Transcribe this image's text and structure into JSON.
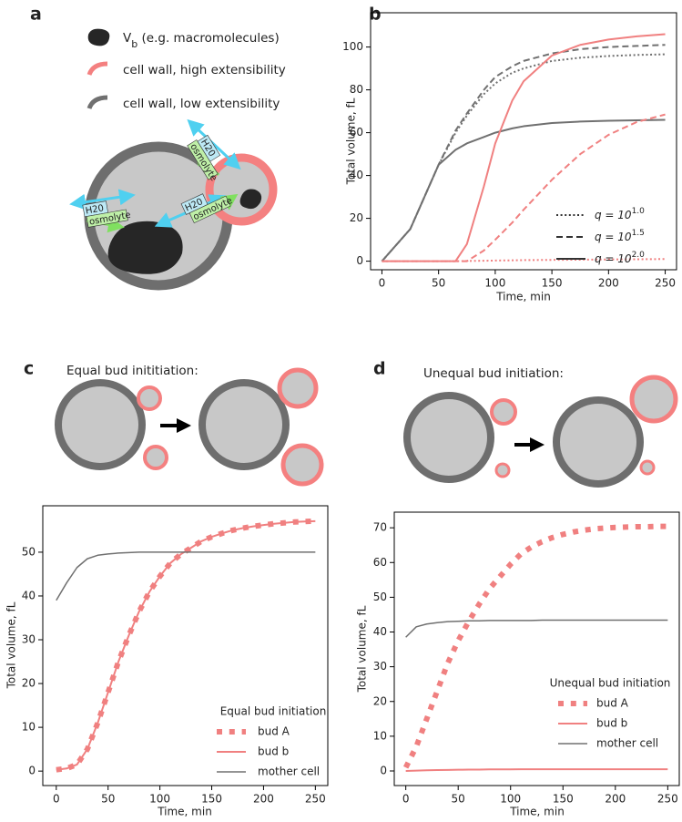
{
  "panels": {
    "a": {
      "letter": "a",
      "vb_symbol": "V",
      "vb_subscript": "b",
      "vb_text": "(e.g. macromolecules)",
      "high": "cell wall, high extensibility",
      "low": "cell wall, low extensibility",
      "water_labels": [
        "H20",
        "H20",
        "H20"
      ],
      "osmolyte_labels": [
        "osmolyte",
        "osmolyte",
        "osmolyte"
      ]
    },
    "b": {
      "letter": "b"
    },
    "c": {
      "letter": "c",
      "caption": "Equal bud inititiation:"
    },
    "d": {
      "letter": "d",
      "caption": "Unequal bud initiation:"
    }
  },
  "chart_data": [
    {
      "type": "line",
      "xlabel": "Time, min",
      "ylabel": "Total volume, fL",
      "x": [
        0,
        25,
        50,
        65,
        75,
        90,
        100,
        115,
        125,
        150,
        175,
        200,
        225,
        250
      ],
      "xlim": [
        -10,
        260
      ],
      "xticks": [
        0,
        50,
        100,
        150,
        200,
        250
      ],
      "ylim": [
        -4,
        116
      ],
      "yticks": [
        0,
        20,
        40,
        60,
        80,
        100
      ],
      "legend_position": "lower right",
      "legend": [
        {
          "base": "q = 10",
          "exponent": "1.0",
          "linestyle": "dotted"
        },
        {
          "base": "q = 10",
          "exponent": "1.5",
          "linestyle": "dashed"
        },
        {
          "base": "q = 10",
          "exponent": "2.0",
          "linestyle": "solid"
        }
      ],
      "series": [
        {
          "color": "#707070",
          "linestyle": "dotted",
          "linewidth": 2,
          "values": [
            0,
            15,
            45,
            60,
            68,
            78,
            83,
            88,
            90,
            93.5,
            95,
            95.8,
            96.3,
            96.6
          ]
        },
        {
          "color": "#707070",
          "linestyle": "dashed",
          "linewidth": 2,
          "values": [
            0,
            15,
            45,
            61,
            69,
            80,
            86,
            91,
            93.5,
            97,
            99,
            100,
            100.5,
            101
          ]
        },
        {
          "color": "#707070",
          "linestyle": "solid",
          "linewidth": 2,
          "values": [
            0,
            15,
            45,
            52,
            55,
            58,
            60,
            62,
            63,
            64.5,
            65.2,
            65.6,
            65.8,
            66
          ]
        },
        {
          "color": "#f08080",
          "linestyle": "dotted",
          "linewidth": 2,
          "values": [
            0,
            0,
            0,
            0,
            0.1,
            0.2,
            0.3,
            0.4,
            0.5,
            0.6,
            0.7,
            0.8,
            0.9,
            1
          ]
        },
        {
          "color": "#f08080",
          "linestyle": "dashed",
          "linewidth": 2,
          "values": [
            0,
            0,
            0,
            0,
            0,
            5,
            10,
            18,
            24,
            38,
            50,
            59,
            65,
            68.5
          ]
        },
        {
          "color": "#f08080",
          "linestyle": "solid",
          "linewidth": 2,
          "values": [
            0,
            0,
            0,
            0,
            8,
            35,
            55,
            75,
            84,
            96,
            101,
            103.5,
            105,
            106
          ]
        }
      ]
    },
    {
      "type": "line",
      "xlabel": "Time, min",
      "ylabel": "Total volume, fL",
      "x": [
        0,
        10,
        20,
        30,
        40,
        50,
        60,
        70,
        80,
        90,
        100,
        110,
        120,
        130,
        140,
        150,
        160,
        170,
        180,
        190,
        200,
        210,
        220,
        230,
        240,
        250
      ],
      "xlim": [
        -13,
        262
      ],
      "xticks": [
        0,
        50,
        100,
        150,
        200,
        250
      ],
      "ylim": [
        -3.3,
        60.6
      ],
      "yticks": [
        0,
        10,
        20,
        30,
        40,
        50
      ],
      "legend_position": "lower right",
      "legend_title": "Equal bud initiation",
      "series": [
        {
          "name": "bud A",
          "color": "#f08080",
          "linestyle": "dotted",
          "linewidth": 6,
          "values": [
            0.3,
            0.6,
            1.5,
            5,
            11,
            18,
            25,
            31,
            36.5,
            41,
            44.5,
            47.5,
            49.5,
            51,
            52.5,
            53.5,
            54.3,
            55,
            55.5,
            55.9,
            56.2,
            56.5,
            56.7,
            56.9,
            57,
            57.1
          ]
        },
        {
          "name": "bud b",
          "color": "#f08080",
          "linestyle": "solid",
          "linewidth": 2,
          "values": [
            0.3,
            0.6,
            1.5,
            5,
            11,
            18,
            25,
            31,
            36.5,
            41,
            44.5,
            47.5,
            49.5,
            51,
            52.5,
            53.5,
            54.3,
            55,
            55.5,
            55.9,
            56.2,
            56.5,
            56.7,
            56.9,
            57,
            57.1
          ]
        },
        {
          "name": "mother cell",
          "color": "#707070",
          "linestyle": "solid",
          "linewidth": 1.5,
          "values": [
            39,
            43,
            46.5,
            48.5,
            49.3,
            49.6,
            49.8,
            49.9,
            50,
            50,
            50,
            50,
            50,
            50,
            50,
            50,
            50,
            50,
            50,
            50,
            50,
            50,
            50,
            50,
            50,
            50
          ]
        }
      ]
    },
    {
      "type": "line",
      "xlabel": "Time, min",
      "ylabel": "Total volume, fL",
      "x": [
        0,
        10,
        20,
        30,
        40,
        50,
        60,
        70,
        80,
        90,
        100,
        110,
        120,
        130,
        140,
        150,
        160,
        170,
        180,
        190,
        200,
        210,
        220,
        230,
        240,
        250
      ],
      "xlim": [
        -11,
        261
      ],
      "xticks": [
        0,
        50,
        100,
        150,
        200,
        250
      ],
      "ylim": [
        -4.2,
        74.5
      ],
      "yticks": [
        0,
        10,
        20,
        30,
        40,
        50,
        60,
        70
      ],
      "legend_position": "lower right",
      "legend_title": "Unequal bud initiation",
      "series": [
        {
          "name": "bud A",
          "color": "#f08080",
          "linestyle": "dotted",
          "linewidth": 6,
          "values": [
            1,
            7,
            15,
            23,
            31,
            37.5,
            43,
            48,
            52.5,
            56,
            59.5,
            62.5,
            64.5,
            66,
            67.2,
            68.1,
            68.8,
            69.3,
            69.7,
            69.9,
            70.1,
            70.2,
            70.3,
            70.3,
            70.4,
            70.4
          ]
        },
        {
          "name": "bud b",
          "color": "#f08080",
          "linestyle": "solid",
          "linewidth": 2,
          "values": [
            0,
            0.1,
            0.2,
            0.25,
            0.3,
            0.35,
            0.4,
            0.4,
            0.45,
            0.45,
            0.45,
            0.5,
            0.5,
            0.5,
            0.5,
            0.5,
            0.5,
            0.5,
            0.5,
            0.5,
            0.5,
            0.5,
            0.5,
            0.5,
            0.5,
            0.5
          ]
        },
        {
          "name": "mother cell",
          "color": "#707070",
          "linestyle": "solid",
          "linewidth": 1.5,
          "values": [
            38.5,
            41.5,
            42.3,
            42.7,
            43,
            43.1,
            43.2,
            43.2,
            43.3,
            43.3,
            43.3,
            43.3,
            43.3,
            43.4,
            43.4,
            43.4,
            43.4,
            43.4,
            43.4,
            43.4,
            43.4,
            43.4,
            43.4,
            43.4,
            43.4,
            43.4
          ]
        }
      ]
    }
  ]
}
